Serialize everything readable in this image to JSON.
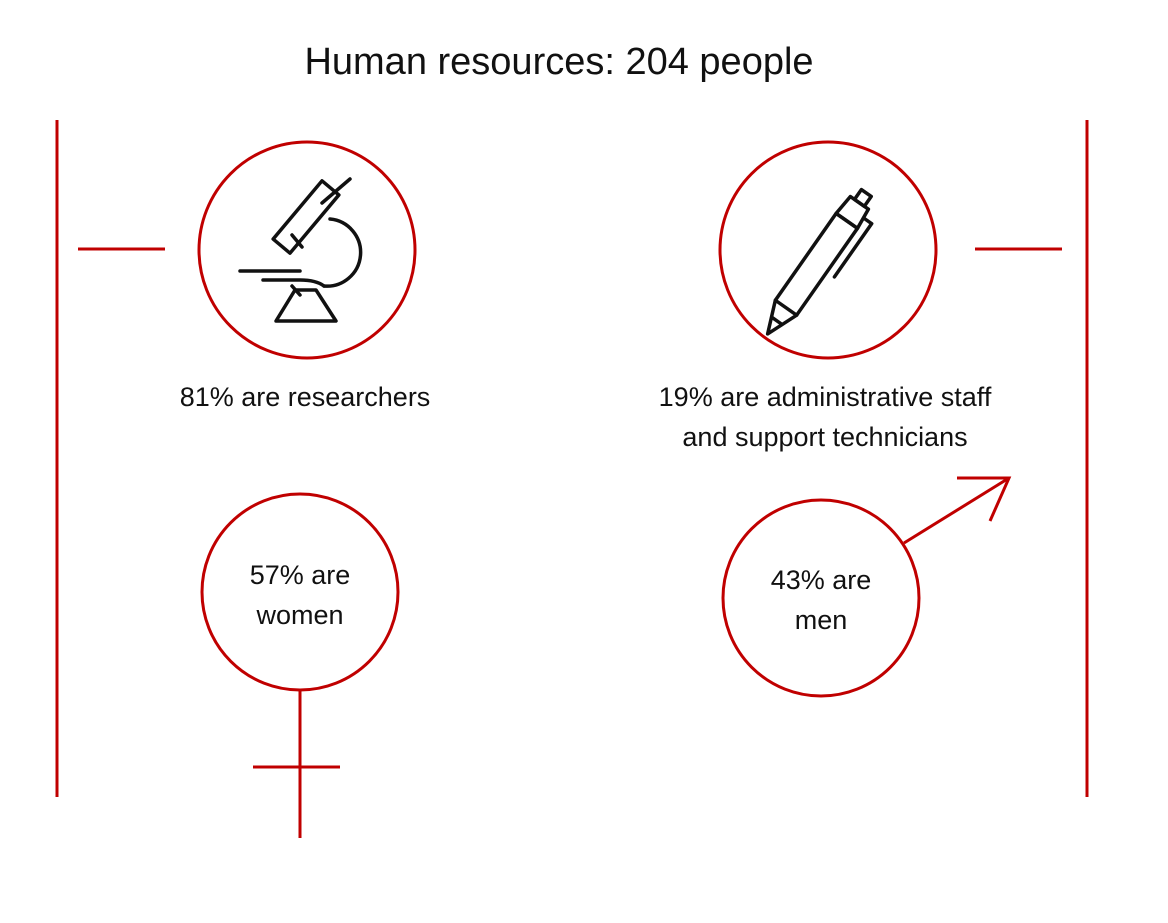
{
  "title": "Human resources: 204 people",
  "researchers": {
    "label": "81% are researchers",
    "icon": "microscope-icon"
  },
  "admin": {
    "line1": "19% are administrative staff",
    "line2": "and support technicians",
    "icon": "pen-icon"
  },
  "women": {
    "line1": "57% are",
    "line2": "women",
    "icon": "female-symbol-icon"
  },
  "men": {
    "line1": "43% are",
    "line2": "men",
    "icon": "male-symbol-icon"
  },
  "colors": {
    "accent": "#c00000",
    "ink": "#111111"
  }
}
